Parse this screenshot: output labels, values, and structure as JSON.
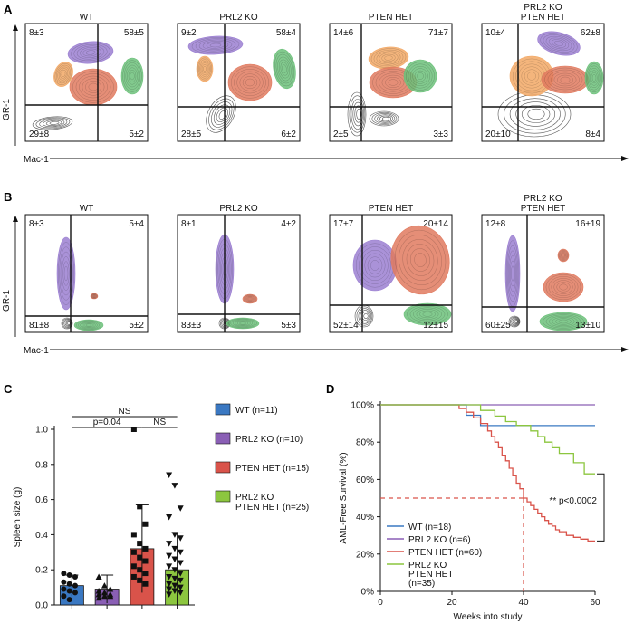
{
  "panel_labels": [
    "A",
    "B",
    "C",
    "D"
  ],
  "panelA": {
    "ylabel": "GR-1",
    "xlabel": "Mac-1",
    "plots": [
      {
        "title": [
          "WT"
        ],
        "tl": "8±3",
        "tr": "58±5",
        "bl": "29±8",
        "br": "5±2"
      },
      {
        "title": [
          "PRL2 KO"
        ],
        "tl": "9±2",
        "tr": "58±4",
        "bl": "28±5",
        "br": "6±2"
      },
      {
        "title": [
          "PTEN HET"
        ],
        "tl": "14±6",
        "tr": "71±7",
        "bl": "2±5",
        "br": "3±3"
      },
      {
        "title": [
          "PRL2 KO",
          "PTEN HET"
        ],
        "tl": "10±4",
        "tr": "62±8",
        "bl": "20±10",
        "br": "8±4"
      }
    ]
  },
  "panelB": {
    "ylabel": "GR-1",
    "xlabel": "Mac-1",
    "plots": [
      {
        "title": [
          "WT"
        ],
        "tl": "8±3",
        "tr": "5±4",
        "bl": "81±8",
        "br": "5±2"
      },
      {
        "title": [
          "PRL2 KO"
        ],
        "tl": "8±1",
        "tr": "4±2",
        "bl": "83±3",
        "br": "5±3"
      },
      {
        "title": [
          "PTEN HET"
        ],
        "tl": "17±7",
        "tr": "20±14",
        "bl": "52±14",
        "br": "12±15"
      },
      {
        "title": [
          "PRL2 KO",
          "PTEN HET"
        ],
        "tl": "12±8",
        "tr": "16±19",
        "bl": "60±25",
        "br": "13±10"
      }
    ]
  },
  "colors": {
    "wt": "#3a78c2",
    "prl2": "#8a5fb5",
    "pten": "#d9534a",
    "double": "#8cc63f",
    "purple": "#9b7fd1",
    "orange": "#f2a865",
    "salmon": "#e07a5f",
    "green": "#6cc17a"
  },
  "chart_data": [
    {
      "type": "bar",
      "ylabel": "Spleen size (g)",
      "ylim": [
        0,
        1.0
      ],
      "yticks": [
        "0.0",
        "0.2",
        "0.4",
        "0.6",
        "0.8",
        "1.0"
      ],
      "categories": [
        "WT",
        "PRL2 KO",
        "PTEN HET",
        "PRL2 KO PTEN HET"
      ],
      "values": [
        0.11,
        0.09,
        0.32,
        0.2
      ],
      "errors": [
        0.06,
        0.08,
        0.25,
        0.21
      ],
      "points": [
        [
          0.18,
          0.17,
          0.16,
          0.13,
          0.12,
          0.11,
          0.09,
          0.08,
          0.07,
          0.05,
          0.03
        ],
        [
          0.16,
          0.11,
          0.09,
          0.08,
          0.07,
          0.06,
          0.06,
          0.05,
          0.05,
          0.04
        ],
        [
          1.0,
          0.56,
          0.46,
          0.4,
          0.35,
          0.32,
          0.3,
          0.27,
          0.25,
          0.22,
          0.2,
          0.18,
          0.16,
          0.14,
          0.12
        ],
        [
          0.74,
          0.68,
          0.55,
          0.5,
          0.4,
          0.38,
          0.35,
          0.32,
          0.3,
          0.28,
          0.26,
          0.24,
          0.22,
          0.2,
          0.18,
          0.16,
          0.15,
          0.14,
          0.12,
          0.11,
          0.1,
          0.09,
          0.08,
          0.07,
          0.06
        ]
      ],
      "markers": [
        "circle",
        "triangle",
        "square",
        "triangle-down"
      ],
      "annotations": [
        {
          "text": "NS",
          "from": 0,
          "to": 3,
          "y": 1.08
        },
        {
          "text": "p=0.04",
          "from": 0,
          "to": 2,
          "y": 1.02
        },
        {
          "text": "NS",
          "from": 2,
          "to": 3,
          "y": 1.02
        }
      ],
      "legend": [
        {
          "label": [
            "WT (n=11)"
          ],
          "color": "#3a78c2"
        },
        {
          "label": [
            "PRL2 KO (n=10)"
          ],
          "color": "#8a5fb5"
        },
        {
          "label": [
            "PTEN HET (n=15)"
          ],
          "color": "#d9534a"
        },
        {
          "label": [
            "PRL2 KO",
            "PTEN HET (n=25)"
          ],
          "color": "#8cc63f"
        }
      ]
    },
    {
      "type": "line",
      "xlabel": "Weeks into study",
      "ylabel": "AML-Free Survival (%)",
      "xlim": [
        0,
        60
      ],
      "ylim": [
        0,
        100
      ],
      "xticks": [
        "0",
        "20",
        "40",
        "60"
      ],
      "yticks": [
        "0%",
        "20%",
        "40%",
        "60%",
        "80%",
        "100%"
      ],
      "series": [
        {
          "name": "WT (n=18)",
          "color": "#3a78c2",
          "points": [
            [
              0,
              100
            ],
            [
              24,
              100
            ],
            [
              24,
              94.4
            ],
            [
              28,
              94.4
            ],
            [
              28,
              88.9
            ],
            [
              60,
              88.9
            ]
          ]
        },
        {
          "name": "PRL2 KO (n=6)",
          "color": "#8a5fb5",
          "points": [
            [
              0,
              100
            ],
            [
              60,
              100
            ]
          ]
        },
        {
          "name": "PTEN HET (n=60)",
          "color": "#d9534a",
          "points": [
            [
              0,
              100
            ],
            [
              22,
              100
            ],
            [
              22,
              98
            ],
            [
              24,
              98
            ],
            [
              24,
              96
            ],
            [
              26,
              96
            ],
            [
              26,
              93
            ],
            [
              28,
              93
            ],
            [
              28,
              90
            ],
            [
              30,
              90
            ],
            [
              30,
              86
            ],
            [
              31,
              86
            ],
            [
              31,
              83
            ],
            [
              32,
              83
            ],
            [
              32,
              80
            ],
            [
              33,
              80
            ],
            [
              33,
              77
            ],
            [
              34,
              77
            ],
            [
              34,
              73
            ],
            [
              35,
              73
            ],
            [
              35,
              70
            ],
            [
              36,
              70
            ],
            [
              36,
              66
            ],
            [
              37,
              66
            ],
            [
              37,
              62
            ],
            [
              38,
              62
            ],
            [
              38,
              58
            ],
            [
              39,
              58
            ],
            [
              39,
              55
            ],
            [
              40,
              55
            ],
            [
              40,
              50
            ],
            [
              41,
              50
            ],
            [
              41,
              48
            ],
            [
              42,
              48
            ],
            [
              42,
              46
            ],
            [
              43,
              46
            ],
            [
              43,
              44
            ],
            [
              44,
              44
            ],
            [
              44,
              42
            ],
            [
              45,
              42
            ],
            [
              45,
              40
            ],
            [
              46,
              40
            ],
            [
              46,
              38
            ],
            [
              47,
              38
            ],
            [
              47,
              36
            ],
            [
              48,
              36
            ],
            [
              48,
              35
            ],
            [
              49,
              35
            ],
            [
              49,
              33
            ],
            [
              50,
              33
            ],
            [
              50,
              32
            ],
            [
              52,
              32
            ],
            [
              52,
              30
            ],
            [
              54,
              30
            ],
            [
              54,
              29
            ],
            [
              56,
              29
            ],
            [
              56,
              28
            ],
            [
              58,
              28
            ],
            [
              58,
              27
            ],
            [
              60,
              27
            ]
          ]
        },
        {
          "name": "PRL2 KO PTEN HET (n=35)",
          "color": "#8cc63f",
          "points": [
            [
              0,
              100
            ],
            [
              28,
              100
            ],
            [
              28,
              97
            ],
            [
              32,
              97
            ],
            [
              32,
              94
            ],
            [
              35,
              94
            ],
            [
              35,
              91
            ],
            [
              38,
              91
            ],
            [
              38,
              89
            ],
            [
              42,
              89
            ],
            [
              42,
              86
            ],
            [
              44,
              86
            ],
            [
              44,
              83
            ],
            [
              46,
              83
            ],
            [
              46,
              80
            ],
            [
              48,
              80
            ],
            [
              48,
              77
            ],
            [
              50,
              77
            ],
            [
              50,
              74
            ],
            [
              54,
              74
            ],
            [
              54,
              69
            ],
            [
              57,
              69
            ],
            [
              57,
              63
            ],
            [
              60,
              63
            ]
          ]
        }
      ],
      "median_line": {
        "y": 50,
        "x": 40
      },
      "annotation": "** p<0.0002",
      "legend_labels": [
        [
          "WT (n=18)"
        ],
        [
          "PRL2 KO (n=6)"
        ],
        [
          "PTEN HET (n=60)"
        ],
        [
          "PRL2 KO",
          "PTEN HET",
          "(n=35)"
        ]
      ]
    }
  ]
}
